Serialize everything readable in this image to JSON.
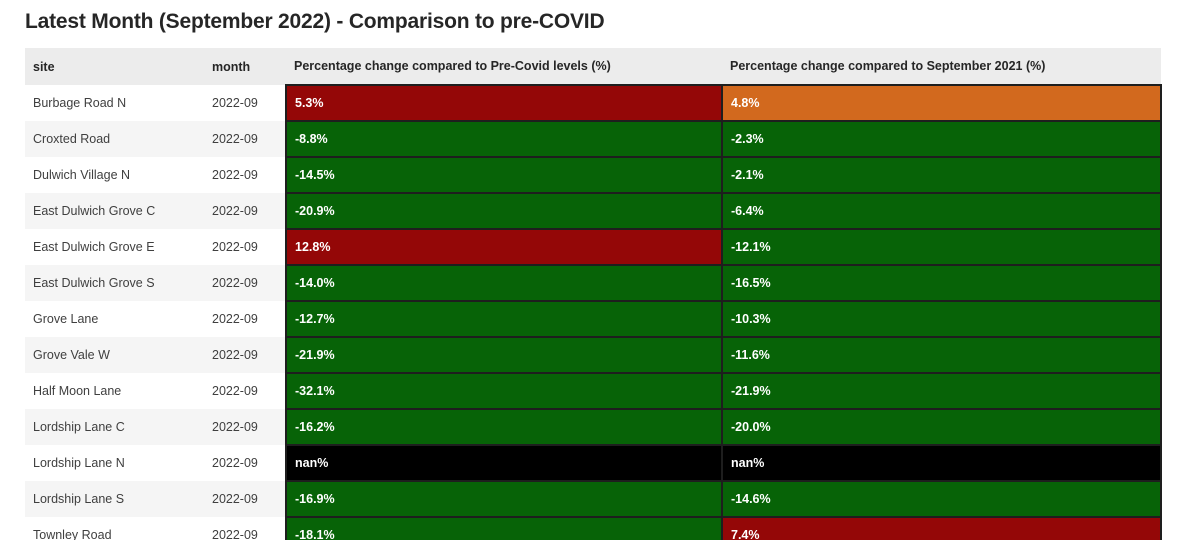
{
  "chart_data": {
    "type": "table",
    "title": "Latest Month (September 2022) - Comparison to pre-COVID",
    "columns": [
      "site",
      "month",
      "Percentage change compared to Pre-Covid levels (%)",
      "Percentage change compared to September 2021 (%)"
    ],
    "rows": [
      {
        "site": "Burbage Road N",
        "month": "2022-09",
        "pre_covid": "5.3%",
        "pre_covid_color": "red",
        "yoy": "4.8%",
        "yoy_color": "orange"
      },
      {
        "site": "Croxted Road",
        "month": "2022-09",
        "pre_covid": "-8.8%",
        "pre_covid_color": "green",
        "yoy": "-2.3%",
        "yoy_color": "green"
      },
      {
        "site": "Dulwich Village N",
        "month": "2022-09",
        "pre_covid": "-14.5%",
        "pre_covid_color": "green",
        "yoy": "-2.1%",
        "yoy_color": "green"
      },
      {
        "site": "East Dulwich Grove C",
        "month": "2022-09",
        "pre_covid": "-20.9%",
        "pre_covid_color": "green",
        "yoy": "-6.4%",
        "yoy_color": "green"
      },
      {
        "site": "East Dulwich Grove E",
        "month": "2022-09",
        "pre_covid": "12.8%",
        "pre_covid_color": "red",
        "yoy": "-12.1%",
        "yoy_color": "green"
      },
      {
        "site": "East Dulwich Grove S",
        "month": "2022-09",
        "pre_covid": "-14.0%",
        "pre_covid_color": "green",
        "yoy": "-16.5%",
        "yoy_color": "green"
      },
      {
        "site": "Grove Lane",
        "month": "2022-09",
        "pre_covid": "-12.7%",
        "pre_covid_color": "green",
        "yoy": "-10.3%",
        "yoy_color": "green"
      },
      {
        "site": "Grove Vale W",
        "month": "2022-09",
        "pre_covid": "-21.9%",
        "pre_covid_color": "green",
        "yoy": "-11.6%",
        "yoy_color": "green"
      },
      {
        "site": "Half Moon Lane",
        "month": "2022-09",
        "pre_covid": "-32.1%",
        "pre_covid_color": "green",
        "yoy": "-21.9%",
        "yoy_color": "green"
      },
      {
        "site": "Lordship Lane C",
        "month": "2022-09",
        "pre_covid": "-16.2%",
        "pre_covid_color": "green",
        "yoy": "-20.0%",
        "yoy_color": "green"
      },
      {
        "site": "Lordship Lane N",
        "month": "2022-09",
        "pre_covid": "nan%",
        "pre_covid_color": "black",
        "yoy": "nan%",
        "yoy_color": "black"
      },
      {
        "site": "Lordship Lane S",
        "month": "2022-09",
        "pre_covid": "-16.9%",
        "pre_covid_color": "green",
        "yoy": "-14.6%",
        "yoy_color": "green"
      },
      {
        "site": "Townley Road",
        "month": "2022-09",
        "pre_covid": "-18.1%",
        "pre_covid_color": "green",
        "yoy": "7.4%",
        "yoy_color": "red"
      }
    ],
    "cell_colors": {
      "red": "#940707",
      "green": "#076307",
      "orange": "#D2691E",
      "black": "#000000"
    },
    "other_colors": {
      "header_background": "#ececec",
      "row_stripe": "#f5f5f5",
      "value_text": "#ffffff",
      "body_text": "#3f3f3f",
      "title_text": "#262626",
      "cell_border": "#1e1e1e"
    }
  }
}
